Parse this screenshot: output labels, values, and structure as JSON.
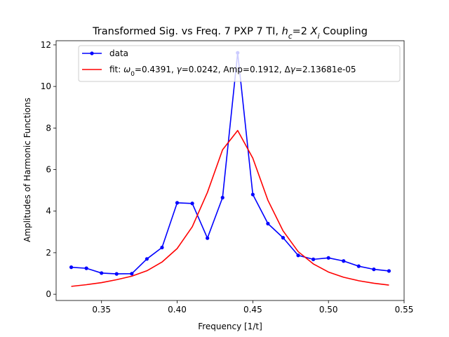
{
  "chart_data": {
    "type": "line",
    "title": "Transformed Sig. vs Freq. 7 PXP 7 TI, h_c=2 X_i Coupling",
    "title_parts": {
      "prefix": "Transformed Sig. vs Freq. 7 PXP 7 TI, ",
      "h": "h",
      "c": "c",
      "middle": "=2 ",
      "X": "X",
      "i": "i",
      "suffix": " Coupling"
    },
    "xlabel": "Frequency [1/t]",
    "ylabel": "Amplitudes of Harmonic Functions",
    "xlim": [
      0.32,
      0.55
    ],
    "ylim": [
      -0.3,
      12.2
    ],
    "xticks": [
      0.35,
      0.4,
      0.45,
      0.5,
      0.55
    ],
    "xtick_labels": [
      "0.35",
      "0.40",
      "0.45",
      "0.50",
      "0.55"
    ],
    "yticks": [
      0,
      2,
      4,
      6,
      8,
      10,
      12
    ],
    "ytick_labels": [
      "0",
      "2",
      "4",
      "6",
      "8",
      "10",
      "12"
    ],
    "legend_position": "top-right",
    "series": [
      {
        "name": "data",
        "legend_label": "data",
        "color": "#0000ff",
        "marker": "circle",
        "x": [
          0.33,
          0.34,
          0.35,
          0.36,
          0.37,
          0.38,
          0.39,
          0.4,
          0.41,
          0.42,
          0.43,
          0.44,
          0.45,
          0.46,
          0.47,
          0.48,
          0.49,
          0.5,
          0.51,
          0.52,
          0.53,
          0.54
        ],
        "y": [
          1.3,
          1.25,
          1.02,
          0.98,
          0.99,
          1.7,
          2.25,
          4.4,
          4.37,
          2.7,
          4.65,
          11.62,
          4.8,
          3.4,
          2.72,
          1.87,
          1.68,
          1.75,
          1.6,
          1.35,
          1.2,
          1.12
        ]
      },
      {
        "name": "fit",
        "legend_label": "fit: ω0=0.4391, γ=0.0242, Amp=0.1912, Δγ=2.13681e-05",
        "legend_parts": {
          "a": "fit: ",
          "omega": "ω",
          "zero": "0",
          "b": "=0.4391, ",
          "gamma": "γ",
          "c": "=0.0242, Amp=0.1912, Δ",
          "gamma2": "γ",
          "d": "=2.13681e-05"
        },
        "color": "#ff0000",
        "x": [
          0.33,
          0.34,
          0.35,
          0.36,
          0.37,
          0.38,
          0.39,
          0.4,
          0.41,
          0.42,
          0.43,
          0.44,
          0.45,
          0.46,
          0.47,
          0.48,
          0.49,
          0.5,
          0.51,
          0.52,
          0.53,
          0.54
        ],
        "y": [
          0.38,
          0.46,
          0.56,
          0.7,
          0.87,
          1.13,
          1.55,
          2.2,
          3.25,
          4.9,
          6.95,
          7.88,
          6.55,
          4.52,
          3.05,
          2.05,
          1.46,
          1.07,
          0.82,
          0.65,
          0.53,
          0.44
        ]
      }
    ]
  }
}
